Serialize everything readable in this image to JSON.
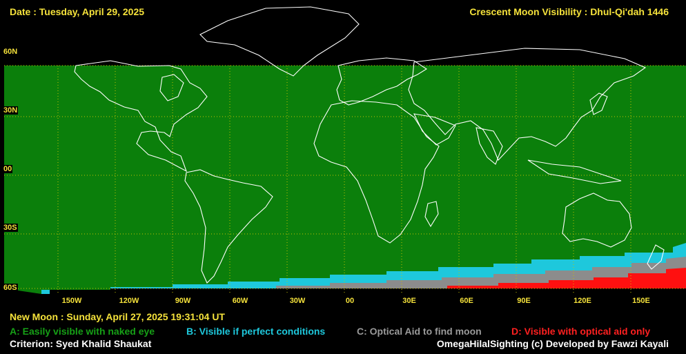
{
  "header": {
    "date": "Date : Tuesday, April 29, 2025",
    "title": "Crescent Moon Visibility : Dhul-Qi'dah  1446"
  },
  "map": {
    "colors": {
      "zone_a": "#0b7f0b",
      "zone_b": "#1ec8dc",
      "zone_c": "#8c8c8c",
      "zone_d": "#ff1010",
      "grid": "#c9c300",
      "coast": "#ffffff",
      "background": "#000000"
    },
    "lat_labels": [
      "60N",
      "30N",
      "00",
      "30S",
      "60S"
    ],
    "lon_labels": [
      "150W",
      "120W",
      "90W",
      "60W",
      "30W",
      "00",
      "30E",
      "60E",
      "90E",
      "120E",
      "150E"
    ]
  },
  "footer": {
    "new_moon": "New Moon : Sunday, April 27, 2025  19:31:04  UT",
    "legend": {
      "a": "A: Easily visible with naked eye",
      "b": "B: Visible if perfect conditions",
      "c": "C: Optical Aid to find moon",
      "d": "D: Visible with optical aid only"
    },
    "criterion": "Criterion: Syed Khalid Shaukat",
    "credit": "OmegaHilalSighting  (c)  Developed by Fawzi Kayali"
  }
}
